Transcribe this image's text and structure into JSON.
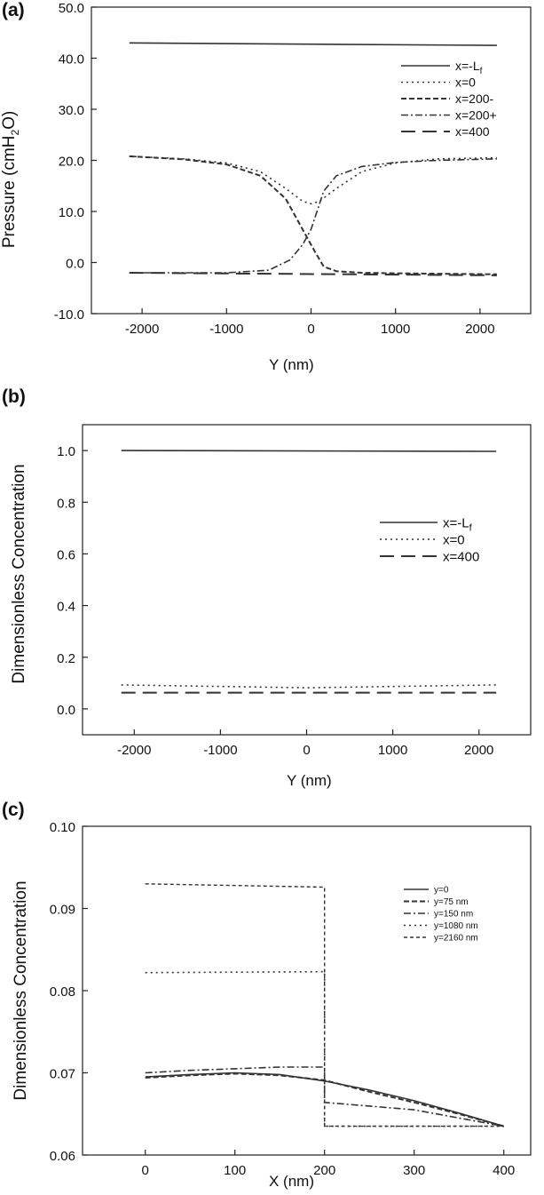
{
  "chart_data": [
    {
      "panel": "(a)",
      "type": "line",
      "xlabel": "Y  (nm)",
      "ylabel_parts": [
        "Pressure (cmH",
        "2",
        "O)"
      ],
      "xlim": [
        -2600,
        2600
      ],
      "ylim": [
        -10,
        50
      ],
      "xticks": [
        -2000,
        -1000,
        0,
        1000,
        2000
      ],
      "xtick_labels": [
        "-2000",
        "-1000",
        "0",
        "1000",
        "2000"
      ],
      "yticks": [
        -10,
        0,
        10,
        20,
        30,
        40,
        50
      ],
      "ytick_labels": [
        "-10.0",
        "0.0",
        "10.0",
        "20.0",
        "30.0",
        "40.0",
        "50.0"
      ],
      "legend_position": "top-right",
      "series": [
        {
          "name": "x=-L",
          "name_sub": "f",
          "style": "solid",
          "x": [
            -2150,
            2200
          ],
          "y": [
            43.0,
            42.5
          ]
        },
        {
          "name": "x=0",
          "style": "dotted",
          "x": [
            -2150,
            -1500,
            -1000,
            -600,
            -300,
            -100,
            0,
            100,
            300,
            600,
            1000,
            1500,
            2200
          ],
          "y": [
            20.8,
            20.3,
            19.5,
            17.8,
            14.5,
            12.0,
            11.5,
            12.0,
            14.5,
            17.8,
            19.5,
            20.3,
            20.5
          ]
        },
        {
          "name": "x=200-",
          "style": "dashed",
          "x": [
            -2150,
            -1500,
            -1000,
            -600,
            -300,
            -150,
            -50,
            50,
            150,
            300,
            600,
            1000,
            1500,
            2200
          ],
          "y": [
            20.8,
            20.2,
            19.2,
            17.0,
            12.5,
            8.0,
            5.0,
            2.0,
            -0.8,
            -1.7,
            -2.0,
            -2.1,
            -2.2,
            -2.3
          ]
        },
        {
          "name": "x=200+",
          "style": "dashdot",
          "x": [
            -2150,
            -1000,
            -500,
            -250,
            -100,
            0,
            50,
            150,
            300,
            600,
            1000,
            1500,
            2200
          ],
          "y": [
            -2.0,
            -2.0,
            -1.5,
            0.5,
            3.5,
            6.5,
            9.0,
            14.0,
            17.0,
            18.8,
            19.6,
            20.0,
            20.3
          ]
        },
        {
          "name": "x=400",
          "style": "longdash",
          "x": [
            -2150,
            2200
          ],
          "y": [
            -2.0,
            -2.5
          ]
        }
      ]
    },
    {
      "panel": "(b)",
      "type": "line",
      "xlabel": "Y  (nm)",
      "ylabel": "Dimensionless Concentration",
      "xlim": [
        -2600,
        2600
      ],
      "ylim": [
        -0.1,
        1.1
      ],
      "xticks": [
        -2000,
        -1000,
        0,
        1000,
        2000
      ],
      "xtick_labels": [
        "-2000",
        "-1000",
        "0",
        "1000",
        "2000"
      ],
      "yticks": [
        0.0,
        0.2,
        0.4,
        0.6,
        0.8,
        1.0
      ],
      "ytick_labels": [
        "0.0",
        "0.2",
        "0.4",
        "0.6",
        "0.8",
        "1.0"
      ],
      "legend_position": "middle-right",
      "series": [
        {
          "name": "x=-L",
          "name_sub": "f",
          "style": "solid",
          "x": [
            -2150,
            2200
          ],
          "y": [
            1.0,
            0.997
          ]
        },
        {
          "name": "x=0",
          "style": "dotted",
          "x": [
            -2150,
            0,
            2200
          ],
          "y": [
            0.093,
            0.082,
            0.093
          ]
        },
        {
          "name": "x=400",
          "style": "longdash",
          "x": [
            -2150,
            2200
          ],
          "y": [
            0.063,
            0.063
          ]
        }
      ]
    },
    {
      "panel": "(c)",
      "type": "line",
      "xlabel": "X (nm)",
      "ylabel": "Dimensionless Concentration",
      "xlim": [
        -70,
        430
      ],
      "ylim": [
        0.06,
        0.1
      ],
      "xticks": [
        0,
        100,
        200,
        300,
        400
      ],
      "xtick_labels": [
        "0",
        "100",
        "200",
        "300",
        "400"
      ],
      "yticks": [
        0.06,
        0.07,
        0.08,
        0.09,
        0.1
      ],
      "ytick_labels": [
        "0.06",
        "0.07",
        "0.08",
        "0.09",
        "0.10"
      ],
      "legend_position": "top-right",
      "series": [
        {
          "name": "y=0",
          "style": "solid",
          "x": [
            0,
            50,
            100,
            150,
            200,
            250,
            300,
            350,
            400
          ],
          "y": [
            0.0695,
            0.0698,
            0.07,
            0.0698,
            0.069,
            0.0679,
            0.0666,
            0.0651,
            0.0635
          ]
        },
        {
          "name": "y=75 nm",
          "style": "dashed",
          "x": [
            0,
            50,
            100,
            150,
            200,
            250,
            300,
            350,
            400
          ],
          "y": [
            0.0694,
            0.0697,
            0.0699,
            0.0697,
            0.0691,
            0.0677,
            0.0664,
            0.065,
            0.0635
          ]
        },
        {
          "name": "y=150 nm",
          "style": "dashdot",
          "x": [
            0,
            50,
            100,
            150,
            200,
            200,
            300,
            400
          ],
          "y": [
            0.07,
            0.0703,
            0.0705,
            0.0707,
            0.0707,
            0.0664,
            0.0655,
            0.0635
          ]
        },
        {
          "name": "y=1080 nm",
          "style": "dotted",
          "x": [
            0,
            200,
            200,
            400
          ],
          "y": [
            0.0822,
            0.0823,
            0.0635,
            0.0635
          ]
        },
        {
          "name": "y=2160 nm",
          "style": "shortdash",
          "x": [
            0,
            200,
            200,
            400
          ],
          "y": [
            0.093,
            0.0926,
            0.0635,
            0.0635
          ]
        }
      ]
    }
  ]
}
